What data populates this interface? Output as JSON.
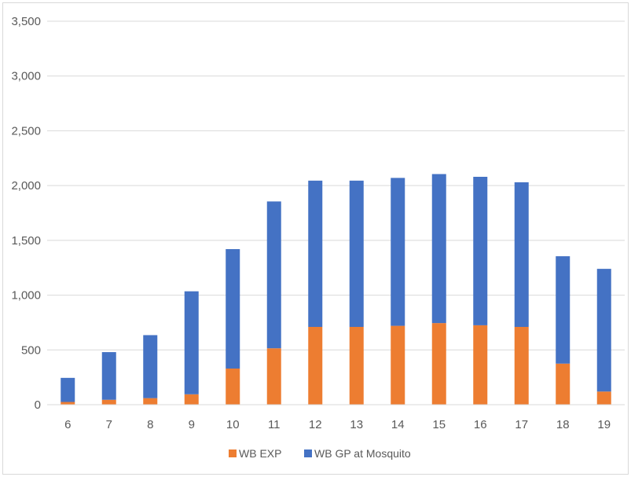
{
  "chart_data": {
    "type": "bar",
    "stacked": true,
    "categories": [
      "6",
      "7",
      "8",
      "9",
      "10",
      "11",
      "12",
      "13",
      "14",
      "15",
      "16",
      "17",
      "18",
      "19"
    ],
    "series": [
      {
        "name": "WB EXP",
        "color": "#ED7D31",
        "values": [
          25,
          45,
          60,
          95,
          330,
          515,
          710,
          710,
          720,
          745,
          725,
          710,
          375,
          120
        ]
      },
      {
        "name": "WB GP at Mosquito",
        "color": "#4472C4",
        "values": [
          220,
          435,
          575,
          940,
          1090,
          1340,
          1335,
          1335,
          1350,
          1360,
          1355,
          1320,
          980,
          1120
        ]
      }
    ],
    "y_ticks": [
      "0",
      "500",
      "1,000",
      "1,500",
      "2,000",
      "2,500",
      "3,000",
      "3,500"
    ],
    "ylim": [
      0,
      3500
    ],
    "grid": true,
    "legend_position": "bottom",
    "title": "",
    "xlabel": "",
    "ylabel": ""
  }
}
